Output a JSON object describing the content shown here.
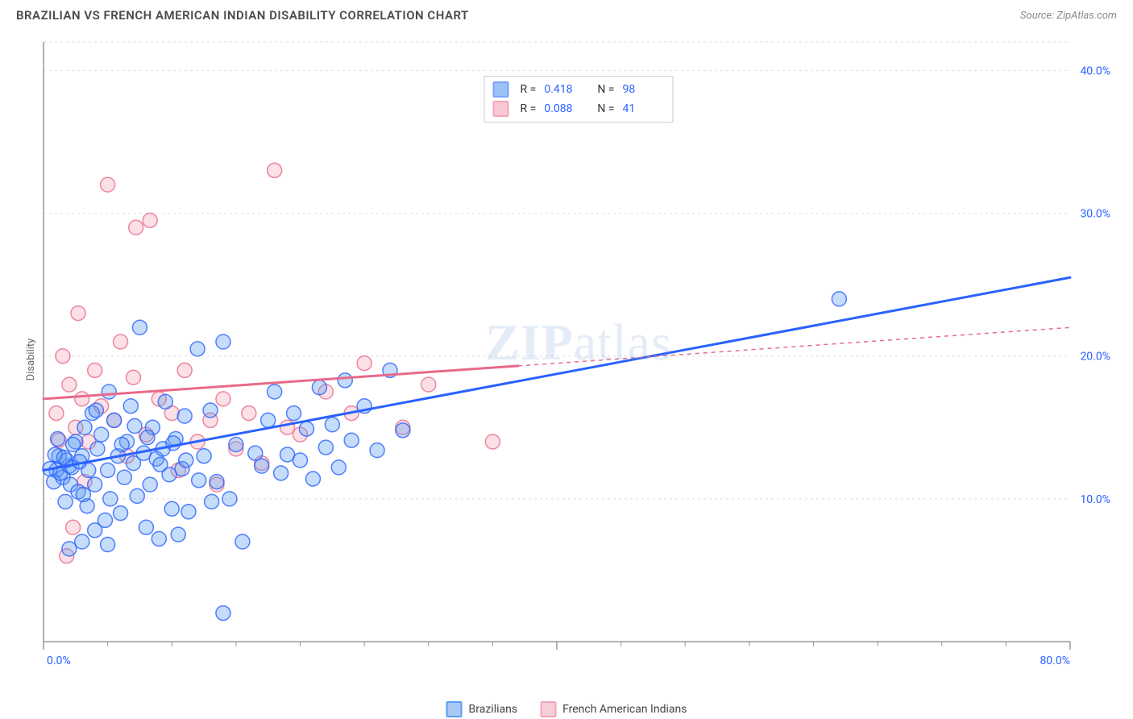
{
  "title": "BRAZILIAN VS FRENCH AMERICAN INDIAN DISABILITY CORRELATION CHART",
  "source": "Source: ZipAtlas.com",
  "watermark": "ZIPatlas",
  "ylabel": "Disability",
  "chart": {
    "type": "scatter",
    "background_color": "#ffffff",
    "grid_color": "#dedede",
    "axis_color": "#999999",
    "xlim": [
      0,
      80
    ],
    "ylim": [
      0,
      42
    ],
    "ytick_step": 10,
    "ytick_labels": [
      "10.0%",
      "20.0%",
      "30.0%",
      "40.0%"
    ],
    "ytick_color": "#2962ff",
    "xtick_major": [
      0,
      40,
      80
    ],
    "xtick_labels": [
      "0.0%",
      "80.0%"
    ],
    "xtick_minor_count": 16,
    "marker_radius": 9,
    "marker_stroke_width": 1.5,
    "marker_fill_opacity": 0.35,
    "trend_line_width_solid": 3,
    "trend_line_width_dash": 1.5,
    "series": [
      {
        "name": "Brazilians",
        "color": "#5a9bf0",
        "stroke": "#2962ff",
        "trend": {
          "x1": 0,
          "y1": 12,
          "x2": 80,
          "y2": 25.5,
          "solid_until_x": 80
        },
        "R": "0.418",
        "N": "98",
        "points": [
          [
            1,
            12
          ],
          [
            1.2,
            13
          ],
          [
            1.5,
            11.5
          ],
          [
            2,
            12.3
          ],
          [
            2.1,
            11
          ],
          [
            2.5,
            14
          ],
          [
            2.7,
            10.5
          ],
          [
            3,
            13
          ],
          [
            3.2,
            15
          ],
          [
            3.4,
            9.5
          ],
          [
            3.5,
            12
          ],
          [
            3.8,
            16
          ],
          [
            4,
            11
          ],
          [
            4.2,
            13.5
          ],
          [
            4.5,
            14.5
          ],
          [
            4.8,
            8.5
          ],
          [
            5,
            12
          ],
          [
            5.2,
            10
          ],
          [
            5.5,
            15.5
          ],
          [
            5.8,
            13
          ],
          [
            6,
            9
          ],
          [
            6.3,
            11.5
          ],
          [
            6.5,
            14
          ],
          [
            6.8,
            16.5
          ],
          [
            7,
            12.5
          ],
          [
            7.3,
            10.2
          ],
          [
            7.5,
            22
          ],
          [
            7.8,
            13.2
          ],
          [
            8,
            8
          ],
          [
            8.3,
            11
          ],
          [
            8.5,
            15
          ],
          [
            8.8,
            12.8
          ],
          [
            9,
            7.2
          ],
          [
            9.3,
            13.5
          ],
          [
            9.5,
            16.8
          ],
          [
            9.8,
            11.7
          ],
          [
            10,
            9.3
          ],
          [
            10.3,
            14.2
          ],
          [
            10.5,
            7.5
          ],
          [
            10.8,
            12.1
          ],
          [
            11,
            15.8
          ],
          [
            11.3,
            9.1
          ],
          [
            12,
            20.5
          ],
          [
            12.5,
            13
          ],
          [
            13,
            16.2
          ],
          [
            13.5,
            11.2
          ],
          [
            14,
            21
          ],
          [
            14.5,
            10
          ],
          [
            15,
            13.8
          ],
          [
            15.5,
            7
          ],
          [
            14,
            2
          ],
          [
            16.5,
            13.2
          ],
          [
            17,
            12.3
          ],
          [
            17.5,
            15.5
          ],
          [
            18,
            17.5
          ],
          [
            18.5,
            11.8
          ],
          [
            19,
            13.1
          ],
          [
            19.5,
            16
          ],
          [
            20,
            12.7
          ],
          [
            20.5,
            14.9
          ],
          [
            21,
            11.4
          ],
          [
            21.5,
            17.8
          ],
          [
            22,
            13.6
          ],
          [
            22.5,
            15.2
          ],
          [
            23,
            12.2
          ],
          [
            23.5,
            18.3
          ],
          [
            24,
            14.1
          ],
          [
            25,
            16.5
          ],
          [
            26,
            13.4
          ],
          [
            27,
            19
          ],
          [
            28,
            14.8
          ],
          [
            62,
            24
          ],
          [
            2,
            6.5
          ],
          [
            3,
            7
          ],
          [
            4,
            7.8
          ],
          [
            5,
            6.8
          ],
          [
            1.8,
            12.7
          ],
          [
            2.3,
            13.8
          ],
          [
            1.1,
            14.2
          ],
          [
            0.8,
            11.2
          ],
          [
            0.5,
            12.1
          ],
          [
            0.9,
            13.1
          ],
          [
            1.3,
            11.8
          ],
          [
            1.6,
            12.9
          ],
          [
            2.2,
            12.2
          ],
          [
            2.8,
            12.6
          ],
          [
            1.7,
            9.8
          ],
          [
            3.1,
            10.3
          ],
          [
            4.1,
            16.2
          ],
          [
            5.1,
            17.5
          ],
          [
            6.1,
            13.8
          ],
          [
            7.1,
            15.1
          ],
          [
            8.1,
            14.3
          ],
          [
            9.1,
            12.4
          ],
          [
            10.1,
            13.9
          ],
          [
            11.1,
            12.7
          ],
          [
            12.1,
            11.3
          ],
          [
            13.1,
            9.8
          ]
        ]
      },
      {
        "name": "French American Indians",
        "color": "#f4a6b8",
        "stroke": "#e86a8a",
        "trend": {
          "x1": 0,
          "y1": 17,
          "x2": 80,
          "y2": 22,
          "solid_until_x": 37
        },
        "R": "0.088",
        "N": "41",
        "points": [
          [
            1,
            16
          ],
          [
            1.5,
            20
          ],
          [
            2,
            18
          ],
          [
            2.5,
            15
          ],
          [
            2.7,
            23
          ],
          [
            3,
            17
          ],
          [
            3.5,
            14
          ],
          [
            4,
            19
          ],
          [
            4.5,
            16.5
          ],
          [
            5,
            32
          ],
          [
            5.5,
            15.5
          ],
          [
            6,
            21
          ],
          [
            6.5,
            13
          ],
          [
            7,
            18.5
          ],
          [
            7.2,
            29
          ],
          [
            8,
            14.5
          ],
          [
            8.3,
            29.5
          ],
          [
            9,
            17
          ],
          [
            10,
            16
          ],
          [
            10.5,
            12
          ],
          [
            11,
            19
          ],
          [
            12,
            14
          ],
          [
            13,
            15.5
          ],
          [
            13.5,
            11
          ],
          [
            14,
            17
          ],
          [
            15,
            13.5
          ],
          [
            16,
            16
          ],
          [
            17,
            12.5
          ],
          [
            18,
            33
          ],
          [
            19,
            15
          ],
          [
            20,
            14.5
          ],
          [
            22,
            17.5
          ],
          [
            24,
            16
          ],
          [
            25,
            19.5
          ],
          [
            28,
            15
          ],
          [
            30,
            18
          ],
          [
            35,
            14
          ],
          [
            1.8,
            6
          ],
          [
            2.3,
            8
          ],
          [
            3.2,
            11.2
          ],
          [
            1.2,
            14.1
          ]
        ]
      }
    ]
  },
  "bottom_legend": [
    {
      "label": "Brazilians",
      "fill": "#a9c9f5",
      "stroke": "#5a9bf0"
    },
    {
      "label": "French American Indians",
      "fill": "#f7cdd7",
      "stroke": "#f4a6b8"
    }
  ],
  "top_legend_prefix_R": "R  =",
  "top_legend_prefix_N": "N  ="
}
